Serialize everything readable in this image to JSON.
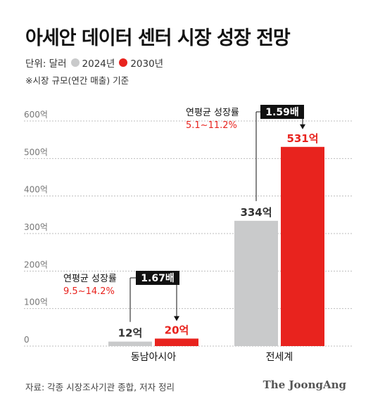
{
  "title": "아세안 데이터 센터 시장 성장 전망",
  "legend": {
    "unit_label": "단위: 달러",
    "items": [
      {
        "label": "2024년",
        "color": "#c9cacb"
      },
      {
        "label": "2030년",
        "color": "#e8231e"
      }
    ]
  },
  "note": "※시장 규모(연간 매출) 기준",
  "source": "자료: 각종 시장조사기관 종합, 저자 정리",
  "brand": "The JoongAng",
  "chart_data": {
    "type": "bar",
    "categories": [
      "동남아시아",
      "전세계"
    ],
    "series": [
      {
        "name": "2024년",
        "values": [
          12,
          334
        ],
        "value_labels": [
          "12억",
          "334억"
        ],
        "color": "#c9cacb"
      },
      {
        "name": "2030년",
        "values": [
          20,
          531
        ],
        "value_labels": [
          "20억",
          "531억"
        ],
        "color": "#e8231e"
      }
    ],
    "ylim": [
      0,
      600
    ],
    "yticks": [
      0,
      100,
      200,
      300,
      400,
      500,
      600
    ],
    "ytick_labels": [
      "0",
      "100억",
      "200억",
      "300억",
      "400억",
      "500억",
      "600억"
    ],
    "grid": true,
    "annotations": [
      {
        "category": "동남아시아",
        "cagr_label": "연평균 성장률",
        "cagr_value": "9.5~14.2%",
        "multiplier": "1.67배"
      },
      {
        "category": "전세계",
        "cagr_label": "연평균 성장률",
        "cagr_value": "5.1~11.2%",
        "multiplier": "1.59배"
      }
    ]
  }
}
